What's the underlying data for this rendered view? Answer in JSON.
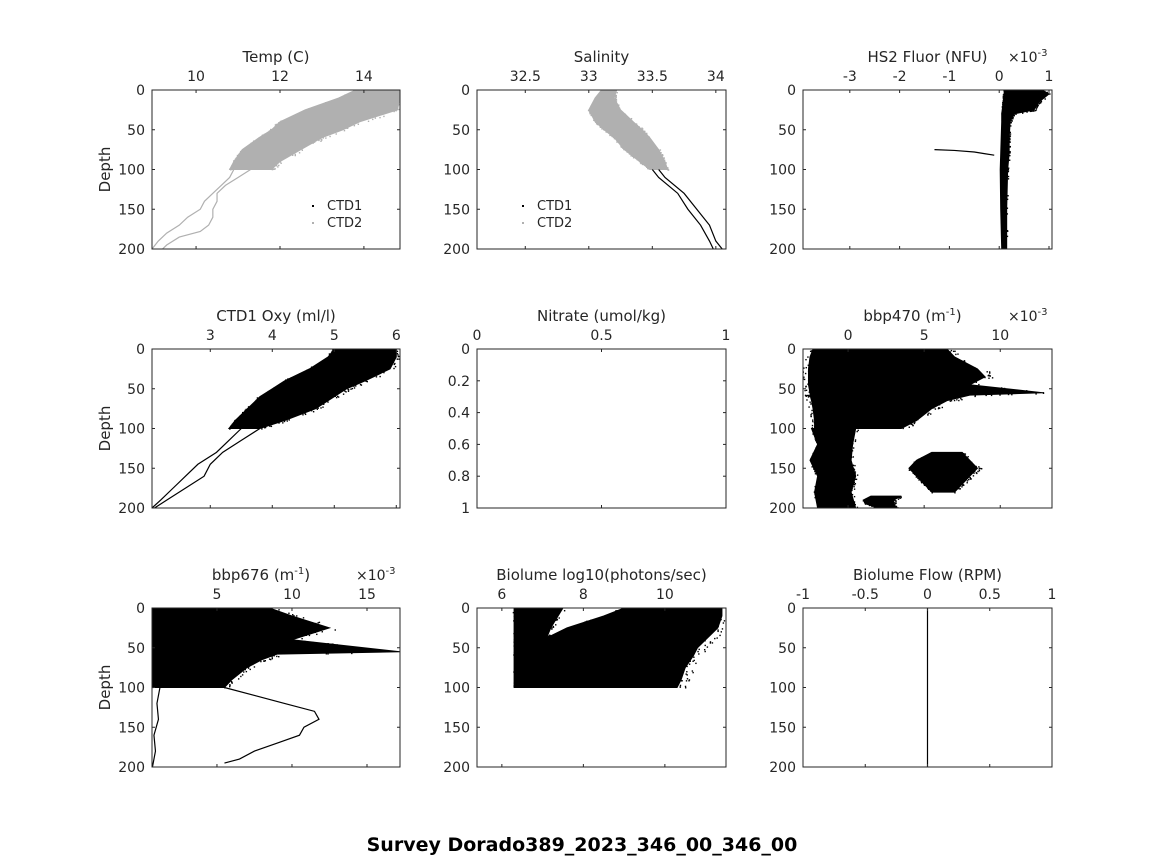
{
  "figure_title": "Survey Dorado389_2023_346_00_346_00",
  "colors": {
    "ctd1": "#000000",
    "ctd2": "#b0b0b0",
    "axis": "#262626"
  },
  "chart_data": [
    {
      "id": "temp",
      "type": "scatter",
      "title": "Temp (C)",
      "ylabel": "Depth",
      "xlim": [
        8.95,
        14.86
      ],
      "ylim": [
        0,
        200
      ],
      "xticks": [
        10,
        12,
        14
      ],
      "yticks": [
        0,
        50,
        100,
        150,
        200
      ],
      "legend": {
        "placement": "bottom-right",
        "entries": [
          "CTD1",
          "CTD2"
        ]
      },
      "bands": [
        {
          "series": "CTD2",
          "depth": [
            0,
            10,
            25,
            40,
            50,
            60,
            75,
            90,
            100
          ],
          "min": [
            13.8,
            13.4,
            12.6,
            12.0,
            11.8,
            11.5,
            11.1,
            10.9,
            10.8
          ],
          "max": [
            14.86,
            14.86,
            14.8,
            13.9,
            13.5,
            13.0,
            12.5,
            12.0,
            11.8
          ]
        }
      ],
      "lines": [
        {
          "series": "CTD2",
          "depth": [
            100,
            110,
            120,
            130,
            140,
            150,
            160,
            170,
            180,
            190,
            200
          ],
          "x": [
            10.9,
            10.8,
            10.6,
            10.4,
            10.2,
            10.1,
            9.8,
            9.6,
            9.3,
            9.1,
            8.95
          ]
        },
        {
          "series": "CTD2",
          "depth": [
            100,
            110,
            120,
            130,
            140,
            150,
            160,
            170,
            178,
            185,
            195,
            200
          ],
          "x": [
            11.3,
            11.0,
            10.7,
            10.5,
            10.5,
            10.4,
            10.4,
            10.3,
            10.1,
            9.6,
            9.3,
            9.2
          ]
        }
      ]
    },
    {
      "id": "salinity",
      "type": "scatter",
      "title": "Salinity",
      "xlim": [
        32.12,
        34.08
      ],
      "ylim": [
        0,
        200
      ],
      "xticks": [
        32.5,
        33,
        33.5,
        34
      ],
      "yticks": [
        0,
        50,
        100,
        150,
        200
      ],
      "legend": {
        "placement": "bottom-left",
        "entries": [
          "CTD1",
          "CTD2"
        ]
      },
      "bands": [
        {
          "series": "CTD2",
          "depth": [
            0,
            10,
            25,
            40,
            50,
            60,
            75,
            90,
            100
          ],
          "min": [
            33.1,
            33.05,
            33.0,
            33.05,
            33.12,
            33.2,
            33.28,
            33.4,
            33.48
          ],
          "max": [
            33.22,
            33.2,
            33.25,
            33.35,
            33.42,
            33.48,
            33.55,
            33.6,
            33.62
          ]
        }
      ],
      "lines": [
        {
          "series": "CTD1",
          "depth": [
            100,
            110,
            130,
            150,
            170,
            190,
            200
          ],
          "x": [
            33.55,
            33.6,
            33.75,
            33.85,
            33.95,
            34.0,
            34.05
          ]
        },
        {
          "series": "CTD1",
          "depth": [
            100,
            110,
            130,
            150,
            170,
            190,
            200
          ],
          "x": [
            33.5,
            33.55,
            33.7,
            33.78,
            33.88,
            33.95,
            33.98
          ]
        }
      ]
    },
    {
      "id": "hs2_fluor",
      "type": "scatter",
      "title": "HS2 Fluor (NFU)",
      "exponent": "-3",
      "xlim": [
        -3.94,
        1.06
      ],
      "ylim": [
        0,
        200
      ],
      "xticks": [
        -3,
        -2,
        -1,
        0,
        1
      ],
      "yticks": [
        0,
        50,
        100,
        150,
        200
      ],
      "bands": [
        {
          "series": "CTD1",
          "depth": [
            0,
            5,
            15,
            25,
            30,
            40,
            60,
            80,
            100,
            150,
            200
          ],
          "min": [
            0.1,
            0.1,
            0.08,
            0.06,
            0.05,
            0.05,
            0.04,
            0.03,
            0.02,
            0.03,
            0.05
          ],
          "max": [
            0.85,
            1.0,
            0.8,
            0.7,
            0.3,
            0.22,
            0.2,
            0.2,
            0.17,
            0.15,
            0.15
          ]
        }
      ],
      "lines": [
        {
          "series": "CTD1",
          "depth": [
            75,
            76,
            78,
            80,
            82
          ],
          "x": [
            -1.3,
            -0.9,
            -0.5,
            -0.3,
            -0.1
          ]
        }
      ]
    },
    {
      "id": "oxy",
      "type": "scatter",
      "title": "CTD1 Oxy (ml/l)",
      "ylabel": "Depth",
      "xlim": [
        2.06,
        6.06
      ],
      "ylim": [
        0,
        200
      ],
      "xticks": [
        3,
        4,
        5,
        6
      ],
      "yticks": [
        0,
        50,
        100,
        150,
        200
      ],
      "bands": [
        {
          "series": "CTD1",
          "depth": [
            0,
            10,
            25,
            40,
            50,
            60,
            75,
            90,
            100
          ],
          "min": [
            5.0,
            4.9,
            4.6,
            4.2,
            4.0,
            3.8,
            3.6,
            3.4,
            3.3
          ],
          "max": [
            6.0,
            6.0,
            5.9,
            5.5,
            5.2,
            5.0,
            4.7,
            4.2,
            3.8
          ]
        }
      ],
      "lines": [
        {
          "series": "CTD1",
          "depth": [
            100,
            115,
            130,
            145,
            160,
            175,
            190,
            200
          ],
          "x": [
            3.5,
            3.3,
            3.1,
            2.8,
            2.6,
            2.4,
            2.2,
            2.06
          ]
        },
        {
          "series": "CTD1",
          "depth": [
            100,
            115,
            130,
            145,
            160,
            175,
            190,
            200
          ],
          "x": [
            3.8,
            3.5,
            3.2,
            3.0,
            2.9,
            2.6,
            2.3,
            2.1
          ]
        }
      ]
    },
    {
      "id": "nitrate",
      "type": "scatter",
      "title": "Nitrate (umol/kg)",
      "xlim": [
        0,
        1
      ],
      "ylim": [
        0,
        1
      ],
      "xticks": [
        0,
        0.5,
        1
      ],
      "yticks": [
        0,
        0.2,
        0.4,
        0.6,
        0.8,
        1
      ],
      "bands": [],
      "lines": []
    },
    {
      "id": "bbp470",
      "type": "scatter",
      "title": "bbp470 (m",
      "title_sup": "-1",
      "title_end": ")",
      "exponent": "-3",
      "xlim": [
        -2.96,
        13.4
      ],
      "ylim": [
        0,
        200
      ],
      "xticks": [
        0,
        5,
        10
      ],
      "yticks": [
        0,
        50,
        100,
        150,
        200
      ],
      "bands": [
        {
          "series": "CTD1",
          "depth": [
            0,
            10,
            25,
            35,
            45,
            55,
            58,
            65,
            75,
            90,
            100
          ],
          "min": [
            -2.3,
            -2.5,
            -2.6,
            -2.6,
            -2.6,
            -2.5,
            -2.5,
            -2.4,
            -2.3,
            -2.2,
            -2.2
          ],
          "max": [
            6.5,
            7.0,
            8.5,
            9.0,
            8.0,
            12.8,
            8.0,
            6.5,
            5.5,
            4.5,
            3.5
          ]
        },
        {
          "series": "CTD1",
          "depth": [
            100,
            120,
            140,
            160,
            180,
            200
          ],
          "min": [
            -2.4,
            -2.0,
            -2.5,
            -2.0,
            -2.2,
            -2.0
          ],
          "max": [
            0.5,
            0.3,
            0.2,
            0.5,
            0.2,
            0.5
          ]
        },
        {
          "series": "CTD1",
          "depth": [
            130,
            140,
            150,
            160,
            170,
            180
          ],
          "min": [
            5.5,
            4.5,
            4.0,
            4.5,
            5.0,
            5.5
          ],
          "max": [
            7.5,
            8.0,
            8.5,
            8.0,
            7.5,
            7.0
          ]
        },
        {
          "series": "CTD1",
          "depth": [
            185,
            190,
            195,
            200
          ],
          "min": [
            1.5,
            1.0,
            1.2,
            2.0
          ],
          "max": [
            3.5,
            3.0,
            3.0,
            3.2
          ]
        }
      ],
      "lines": []
    },
    {
      "id": "bbp676",
      "type": "scatter",
      "title": "bbp676 (m",
      "title_sup": "-1",
      "title_end": ")",
      "exponent": "-3",
      "ylabel": "Depth",
      "xlim": [
        0.67,
        17.2
      ],
      "ylim": [
        0,
        200
      ],
      "xticks": [
        5,
        10,
        15
      ],
      "yticks": [
        0,
        50,
        100,
        150,
        200
      ],
      "bands": [
        {
          "series": "CTD1",
          "depth": [
            0,
            10,
            25,
            40,
            55,
            58,
            65,
            75,
            90,
            100
          ],
          "min": [
            0.7,
            0.7,
            0.7,
            0.7,
            0.7,
            0.7,
            0.7,
            0.7,
            0.7,
            0.7
          ],
          "max": [
            8.5,
            10.0,
            12.5,
            10.0,
            17.2,
            9.0,
            8.0,
            7.0,
            6.0,
            5.5
          ]
        }
      ],
      "lines": [
        {
          "series": "CTD1",
          "depth": [
            100,
            120,
            140,
            160,
            180,
            200
          ],
          "x": [
            1.2,
            1.0,
            1.1,
            0.8,
            0.9,
            0.7
          ]
        },
        {
          "series": "CTD1",
          "depth": [
            100,
            110,
            120,
            130,
            140,
            150,
            160,
            170,
            180,
            190,
            195
          ],
          "x": [
            5.5,
            7.5,
            9.5,
            11.5,
            11.8,
            10.8,
            10.5,
            9.0,
            7.5,
            6.5,
            5.5
          ]
        }
      ]
    },
    {
      "id": "biolume",
      "type": "scatter",
      "title": "Biolume log10(photons/sec)",
      "xlim": [
        5.39,
        11.5
      ],
      "ylim": [
        0,
        200
      ],
      "xticks": [
        6,
        8,
        10
      ],
      "yticks": [
        0,
        50,
        100,
        150,
        200
      ],
      "bands": [
        {
          "series": "CTD1",
          "depth": [
            0,
            10,
            25,
            40,
            50,
            60,
            75,
            90,
            100
          ],
          "min": [
            9.0,
            8.5,
            7.6,
            7.0,
            6.8,
            6.6,
            6.6,
            6.7,
            6.8
          ],
          "max": [
            11.4,
            11.4,
            11.3,
            11.0,
            10.8,
            10.7,
            10.5,
            10.4,
            10.3
          ]
        },
        {
          "series": "CTD1",
          "depth": [
            0,
            25,
            50,
            75,
            100
          ],
          "min": [
            6.3,
            6.3,
            6.3,
            6.3,
            6.3
          ],
          "max": [
            7.5,
            7.2,
            7.0,
            6.9,
            6.9
          ]
        }
      ],
      "lines": []
    },
    {
      "id": "biolume_flow",
      "type": "line",
      "title": "Biolume Flow (RPM)",
      "xlim": [
        -1,
        1
      ],
      "ylim": [
        0,
        200
      ],
      "xticks": [
        -1,
        -0.5,
        0,
        0.5,
        1
      ],
      "yticks": [
        0,
        50,
        100,
        150,
        200
      ],
      "bands": [],
      "lines": [
        {
          "series": "CTD1",
          "depth": [
            0,
            200
          ],
          "x": [
            0,
            0
          ]
        }
      ]
    }
  ]
}
